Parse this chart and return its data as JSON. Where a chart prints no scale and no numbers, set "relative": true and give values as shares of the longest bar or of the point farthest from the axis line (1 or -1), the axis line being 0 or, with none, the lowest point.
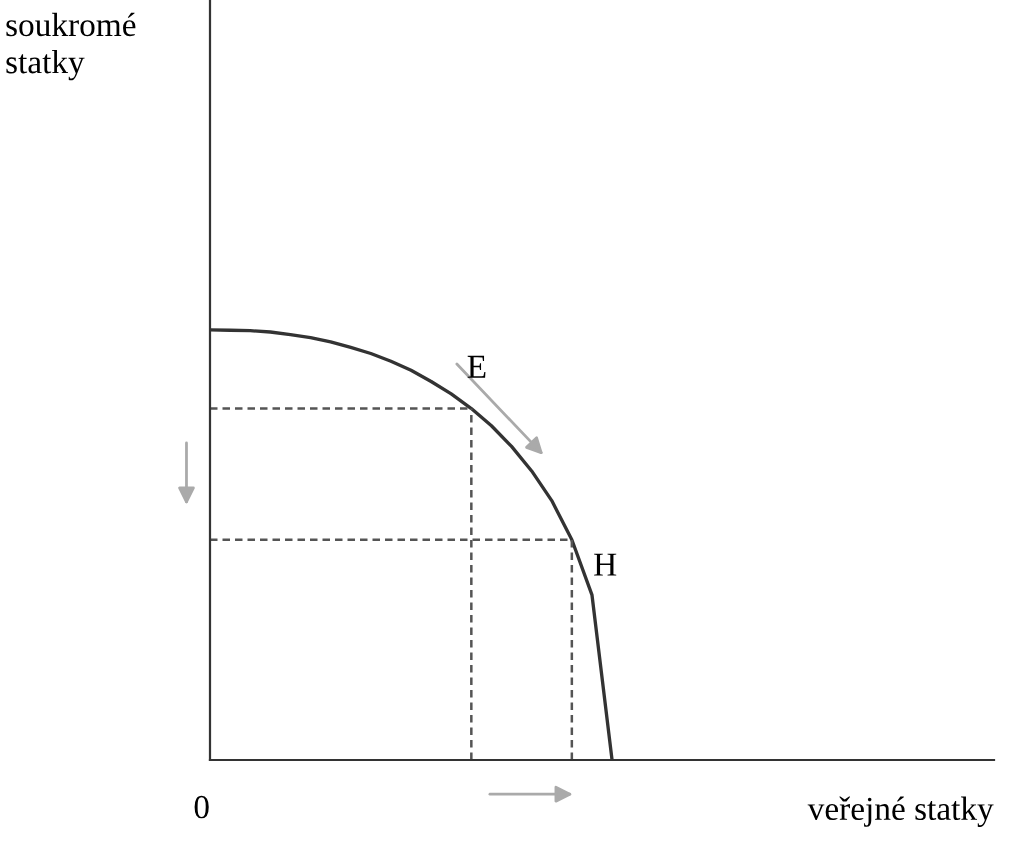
{
  "chart_data": {
    "type": "line",
    "relative": true,
    "xlabel": "veřejné statky",
    "legend": false,
    "marker": "none",
    "categories": [
      null,
      null,
      null,
      null,
      null,
      null,
      null,
      null,
      null,
      null,
      null,
      null,
      null,
      null,
      null,
      null,
      null,
      null,
      null,
      null,
      null,
      null,
      null,
      null,
      null,
      null,
      null,
      null,
      null,
      null,
      null,
      null,
      null,
      null,
      null,
      null,
      null,
      null,
      null,
      null
    ],
    "series": [
      {
        "color": "#333333",
        "line_style": "solid",
        "values": [
          1,
          0.999,
          0.998,
          0.995,
          0.989,
          0.982,
          0.972,
          0.959,
          0.945,
          0.927,
          0.906,
          0.88,
          0.851,
          0.817,
          0.777,
          0.729,
          0.672,
          0.603,
          0.512,
          0.384,
          0,
          null,
          null,
          null,
          null,
          null,
          null,
          null,
          null,
          null,
          null,
          null,
          null,
          null,
          null,
          null,
          null,
          null,
          null,
          null
        ]
      },
      {
        "color": "#555555",
        "line_style": "dashed",
        "values": [
          0.817,
          0.817,
          0.817,
          0.817,
          0.817,
          0.817,
          0.817,
          0.817,
          0.817,
          0.817,
          0.817,
          0.817,
          0.817,
          0.817,
          null,
          null,
          null,
          null,
          null,
          null,
          null,
          null,
          null,
          null,
          null,
          null,
          null,
          null,
          null,
          null,
          null,
          null,
          null,
          null,
          null,
          null,
          null,
          null,
          null,
          null
        ]
      },
      {
        "color": "#555555",
        "line_style": "dashed",
        "values": [
          0.512,
          0.512,
          0.512,
          0.512,
          0.512,
          0.512,
          0.512,
          0.512,
          0.512,
          0.512,
          0.512,
          0.512,
          0.512,
          0.512,
          0.512,
          0.512,
          0.512,
          0.512,
          0.512,
          null,
          null,
          null,
          null,
          null,
          null,
          null,
          null,
          null,
          null,
          null,
          null,
          null,
          null,
          null,
          null,
          null,
          null,
          null,
          null,
          null
        ]
      }
    ],
    "annotations": [
      "soukromé\nstatky",
      "0",
      "E",
      "H"
    ]
  }
}
